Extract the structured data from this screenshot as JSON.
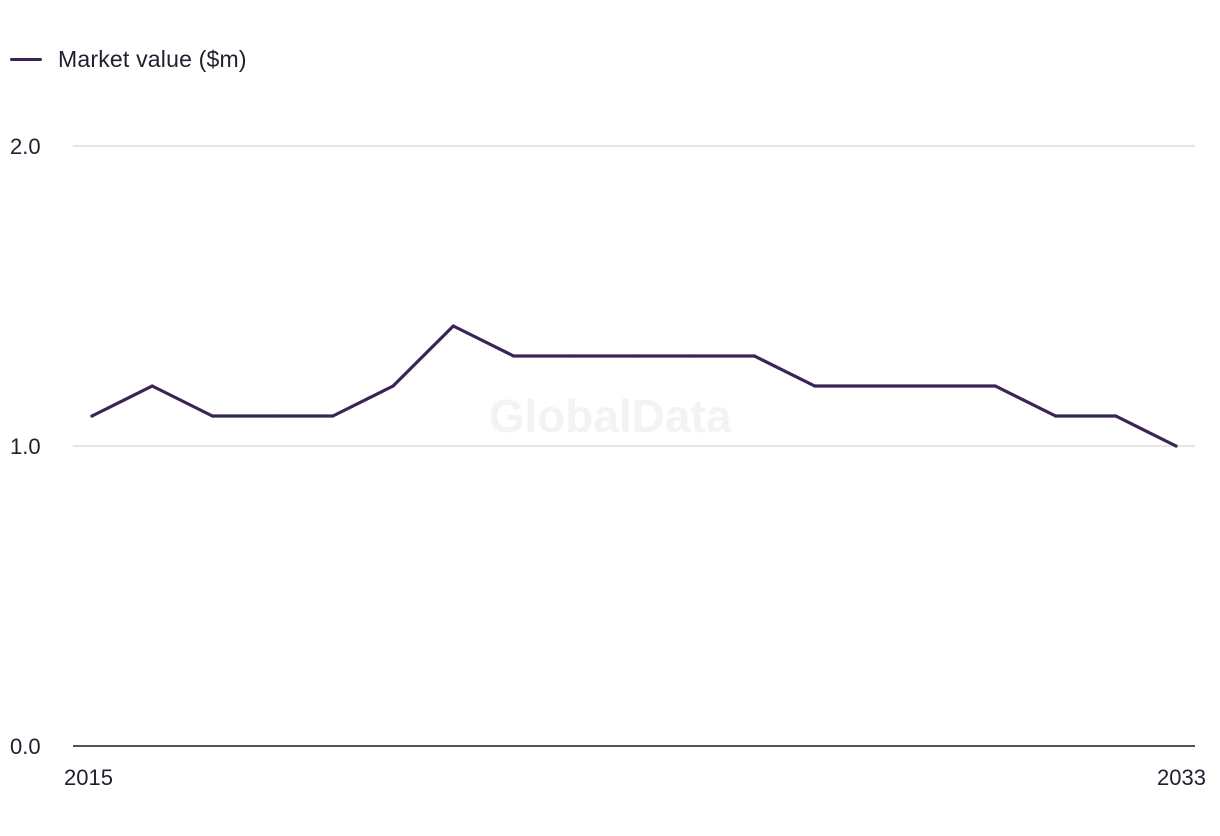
{
  "legend": {
    "label": "Market value ($m)"
  },
  "watermark": "GlobalData",
  "colors": {
    "series": "#3a2456",
    "grid": "#d6d6d6",
    "axis": "#1a1a1a",
    "text": "#1f1f2e",
    "watermark": "#f3f3f3"
  },
  "chart_data": {
    "type": "line",
    "title": "",
    "xlabel": "",
    "ylabel": "",
    "x": [
      2015,
      2016,
      2017,
      2018,
      2019,
      2020,
      2021,
      2022,
      2023,
      2024,
      2025,
      2026,
      2027,
      2028,
      2029,
      2030,
      2031,
      2032,
      2033
    ],
    "x_tick_labels": [
      "2015",
      "2033"
    ],
    "y_ticks": [
      0.0,
      1.0,
      2.0
    ],
    "y_tick_labels": [
      "0.0",
      "1.0",
      "2.0"
    ],
    "ylim": [
      0,
      2
    ],
    "grid": true,
    "legend_position": "top-left",
    "series": [
      {
        "name": "Market value ($m)",
        "values": [
          1.1,
          1.2,
          1.1,
          1.1,
          1.1,
          1.2,
          1.4,
          1.3,
          1.3,
          1.3,
          1.3,
          1.3,
          1.2,
          1.2,
          1.2,
          1.2,
          1.1,
          1.1,
          1.0
        ]
      }
    ]
  }
}
